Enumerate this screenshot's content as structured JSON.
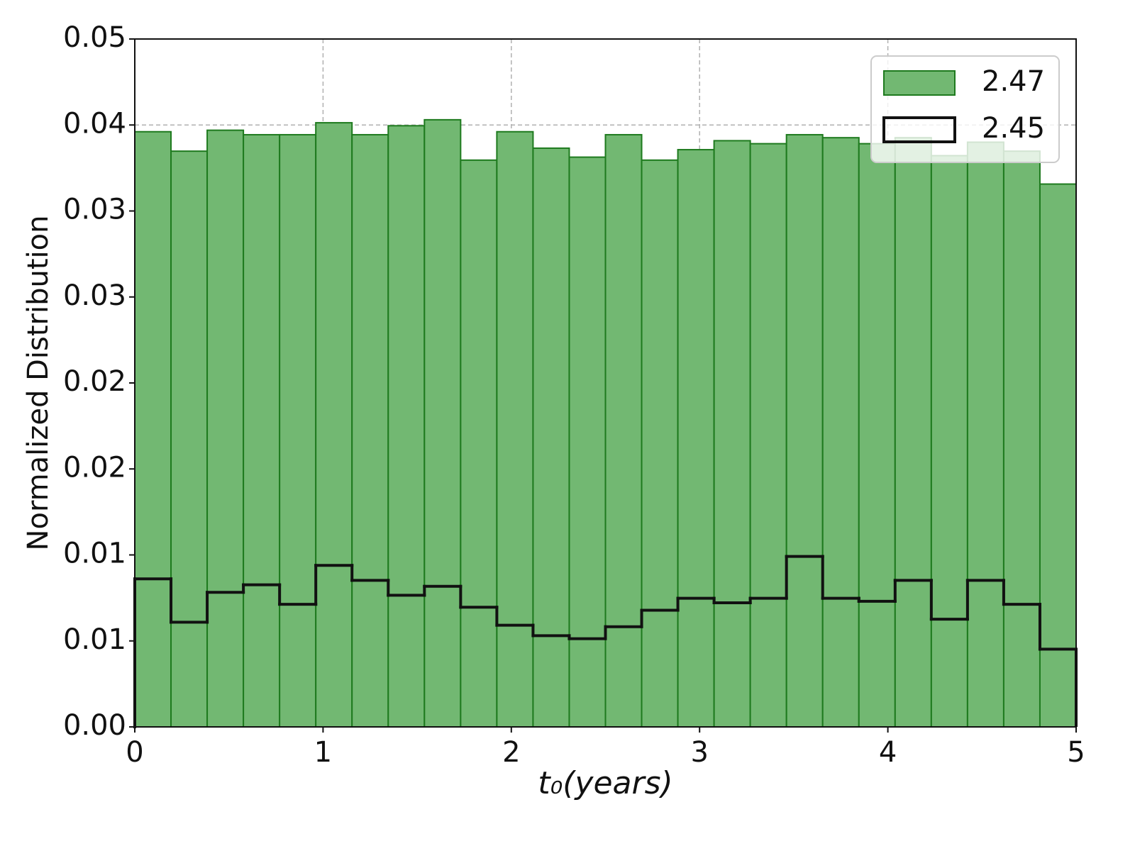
{
  "chart_data": {
    "type": "histogram",
    "xlabel": "t₀(years)",
    "ylabel": "Normalized Distribution",
    "bins": [
      0,
      0.1923,
      0.3846,
      0.5769,
      0.7692,
      0.9615,
      1.1538,
      1.3462,
      1.5385,
      1.7308,
      1.9231,
      2.1154,
      2.3077,
      2.5,
      2.6923,
      2.8846,
      3.0769,
      3.2692,
      3.4615,
      3.6538,
      3.8462,
      4.0385,
      4.2308,
      4.4231,
      4.6154,
      4.8077,
      5
    ],
    "series": [
      {
        "name": "2.47",
        "style": "filled",
        "color": "#72b872",
        "edgecolor": "#1e7a1e",
        "values": [
          0.0398,
          0.0385,
          0.0399,
          0.0396,
          0.0396,
          0.0404,
          0.0396,
          0.0402,
          0.0406,
          0.0379,
          0.0398,
          0.0387,
          0.0381,
          0.0396,
          0.0379,
          0.0386,
          0.0392,
          0.039,
          0.0396,
          0.0394,
          0.039,
          0.0394,
          0.0382,
          0.0391,
          0.0385,
          0.0363
        ]
      },
      {
        "name": "2.45",
        "style": "step",
        "color": "#111111",
        "values": [
          0.0099,
          0.007,
          0.009,
          0.0095,
          0.0082,
          0.0108,
          0.0098,
          0.0088,
          0.0094,
          0.008,
          0.0068,
          0.0061,
          0.0059,
          0.0067,
          0.0078,
          0.0086,
          0.0083,
          0.0086,
          0.0114,
          0.0086,
          0.0084,
          0.0098,
          0.0072,
          0.0098,
          0.0082,
          0.0052
        ]
      }
    ],
    "xlim": [
      0,
      5
    ],
    "xticks": [
      0,
      1,
      2,
      3,
      4,
      5
    ],
    "ylim": [
      0,
      0.046
    ],
    "yticks": [
      {
        "value": 0,
        "label": "0.00"
      },
      {
        "value": 0.00575,
        "label": "0.01"
      },
      {
        "value": 0.0115,
        "label": "0.01"
      },
      {
        "value": 0.01725,
        "label": "0.02"
      },
      {
        "value": 0.023,
        "label": "0.02"
      },
      {
        "value": 0.02875,
        "label": "0.03"
      },
      {
        "value": 0.0345,
        "label": "0.03"
      },
      {
        "value": 0.04025,
        "label": "0.04"
      },
      {
        "value": 0.046,
        "label": "0.05"
      }
    ],
    "grid": true,
    "legend": "upper right"
  }
}
